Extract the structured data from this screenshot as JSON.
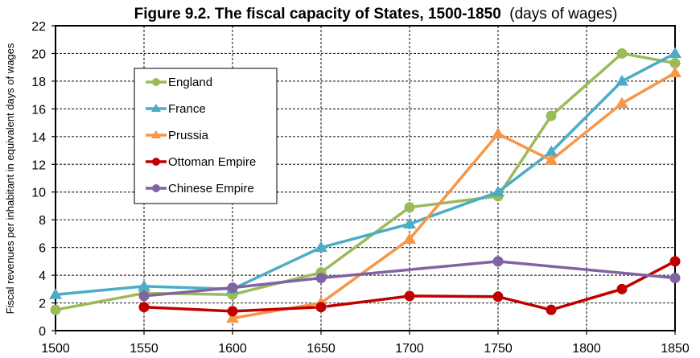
{
  "chart_data": {
    "type": "line",
    "title": "Figure 9.2. The fiscal capacity of States, 1500-1850",
    "title_suffix": "(days of wages)",
    "xlabel": "",
    "ylabel": "Fiscal revenues per inhabitant in equivalent days of wages",
    "xlim": [
      1500,
      1850
    ],
    "ylim": [
      0,
      22
    ],
    "x_ticks": [
      1500,
      1550,
      1600,
      1650,
      1700,
      1750,
      1800,
      1850
    ],
    "y_ticks": [
      0,
      2,
      4,
      6,
      8,
      10,
      12,
      14,
      16,
      18,
      20,
      22
    ],
    "grid": true,
    "legend_position": "upper-left (inside plot)",
    "series": [
      {
        "name": "England",
        "color": "#9BBB59",
        "marker": "circle",
        "points": [
          [
            1500,
            1.5
          ],
          [
            1550,
            2.7
          ],
          [
            1600,
            2.6
          ],
          [
            1650,
            4.2
          ],
          [
            1700,
            8.9
          ],
          [
            1750,
            9.7
          ],
          [
            1780,
            15.5
          ],
          [
            1820,
            20.0
          ],
          [
            1850,
            19.3
          ]
        ]
      },
      {
        "name": "France",
        "color": "#4BACC6",
        "marker": "triangle",
        "points": [
          [
            1500,
            2.6
          ],
          [
            1550,
            3.2
          ],
          [
            1600,
            3.0
          ],
          [
            1650,
            6.0
          ],
          [
            1700,
            7.7
          ],
          [
            1750,
            10.0
          ],
          [
            1780,
            12.9
          ],
          [
            1820,
            18.0
          ],
          [
            1850,
            20.0
          ]
        ]
      },
      {
        "name": "Prussia",
        "color": "#F79646",
        "marker": "triangle",
        "points": [
          [
            1600,
            0.9
          ],
          [
            1650,
            2.0
          ],
          [
            1700,
            6.6
          ],
          [
            1750,
            14.2
          ],
          [
            1780,
            12.3
          ],
          [
            1820,
            16.4
          ],
          [
            1850,
            18.6
          ]
        ]
      },
      {
        "name": "Ottoman Empire",
        "color": "#C00000",
        "marker": "circle",
        "points": [
          [
            1550,
            1.7
          ],
          [
            1600,
            1.4
          ],
          [
            1650,
            1.7
          ],
          [
            1700,
            2.5
          ],
          [
            1750,
            2.45
          ],
          [
            1780,
            1.5
          ],
          [
            1820,
            3.0
          ],
          [
            1850,
            5.0
          ]
        ]
      },
      {
        "name": "Chinese Empire",
        "color": "#8064A2",
        "marker": "circle",
        "points": [
          [
            1550,
            2.5
          ],
          [
            1600,
            3.1
          ],
          [
            1650,
            3.8
          ],
          [
            1750,
            5.0
          ],
          [
            1850,
            3.8
          ]
        ]
      }
    ]
  }
}
